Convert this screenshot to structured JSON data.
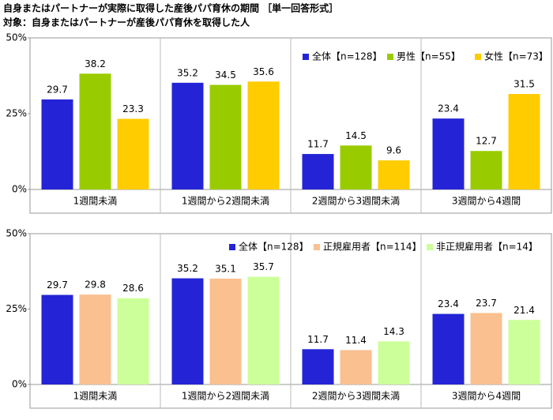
{
  "chart_data": [
    {
      "type": "bar",
      "title": "自身またはパートナーが実際に取得した産後パパ育休の期間 ［単一回答形式］",
      "subtitle": "対象：自身またはパートナーが産後パパ育休を取得した人",
      "categories": [
        "1週間未満",
        "1週間から2週間未満",
        "2週間から3週間未満",
        "3週間から4週間"
      ],
      "series": [
        {
          "name": "全体【n=128】",
          "color": "#2424d6",
          "values": [
            29.7,
            35.2,
            11.7,
            23.4
          ]
        },
        {
          "name": "男性【n=55】",
          "color": "#99cc00",
          "values": [
            38.2,
            34.5,
            14.5,
            12.7
          ]
        },
        {
          "name": "女性【n=73】",
          "color": "#ffcc00",
          "values": [
            23.3,
            35.6,
            9.6,
            31.5
          ]
        }
      ],
      "ylim": [
        0,
        50
      ],
      "yticks": [
        {
          "value": 0,
          "label": "0%"
        },
        {
          "value": 25,
          "label": "25%"
        },
        {
          "value": 50,
          "label": "50%"
        }
      ]
    },
    {
      "type": "bar",
      "categories": [
        "1週間未満",
        "1週間から2週間未満",
        "2週間から3週間未満",
        "3週間から4週間"
      ],
      "series": [
        {
          "name": "全体【n=128】",
          "color": "#2424d6",
          "values": [
            29.7,
            35.2,
            11.7,
            23.4
          ]
        },
        {
          "name": "正規雇用者【n=114】",
          "color": "#fac090",
          "values": [
            29.8,
            35.1,
            11.4,
            23.7
          ]
        },
        {
          "name": "非正規雇用者【n=14】",
          "color": "#ccff99",
          "values": [
            28.6,
            35.7,
            14.3,
            21.4
          ]
        }
      ],
      "ylim": [
        0,
        50
      ],
      "yticks": [
        {
          "value": 0,
          "label": "0%"
        },
        {
          "value": 25,
          "label": "25%"
        },
        {
          "value": 50,
          "label": "50%"
        }
      ]
    }
  ]
}
